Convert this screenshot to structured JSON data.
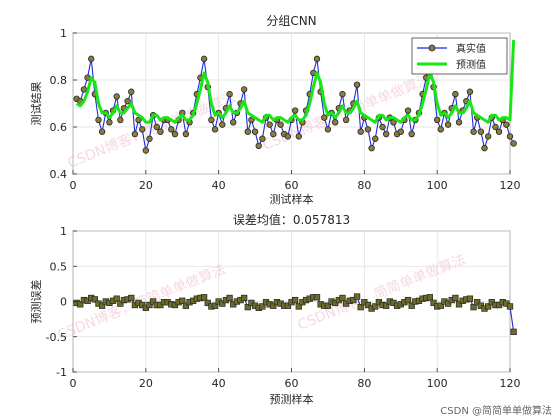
{
  "chart_data": [
    {
      "type": "line",
      "title": "分组CNN",
      "xlabel": "测试样本",
      "ylabel": "测试结果",
      "xlim": [
        0,
        120
      ],
      "ylim": [
        0.4,
        1.0
      ],
      "xticks": [
        "0",
        "20",
        "40",
        "60",
        "80",
        "100",
        "120"
      ],
      "yticks": [
        "0.4",
        "0.6",
        "0.8",
        "1"
      ],
      "grid": true,
      "legend_position": "top-right",
      "series": [
        {
          "name": "真实值",
          "color": "#1f2bd6",
          "marker_color": "#8a7b3e",
          "values": [
            0.72,
            0.71,
            0.76,
            0.81,
            0.89,
            0.74,
            0.63,
            0.58,
            0.66,
            0.62,
            0.67,
            0.73,
            0.63,
            0.68,
            0.71,
            0.75,
            0.57,
            0.63,
            0.59,
            0.5,
            0.55,
            0.65,
            0.6,
            0.58,
            0.63,
            0.63,
            0.59,
            0.57,
            0.63,
            0.66,
            0.57,
            0.62,
            0.66,
            0.74,
            0.81,
            0.89,
            0.77,
            0.63,
            0.59,
            0.66,
            0.61,
            0.68,
            0.74,
            0.62,
            0.66,
            0.7,
            0.76,
            0.58,
            0.63,
            0.58,
            0.52,
            0.55,
            0.64,
            0.61,
            0.57,
            0.63,
            0.61,
            0.57,
            0.56,
            0.63,
            0.67,
            0.56,
            0.62,
            0.67,
            0.74,
            0.83,
            0.89,
            0.75,
            0.64,
            0.59,
            0.66,
            0.62,
            0.68,
            0.74,
            0.63,
            0.67,
            0.7,
            0.78,
            0.58,
            0.64,
            0.59,
            0.51,
            0.55,
            0.64,
            0.6,
            0.57,
            0.64,
            0.62,
            0.57,
            0.58,
            0.63,
            0.67,
            0.57,
            0.63,
            0.66,
            0.74,
            0.81,
            0.89,
            0.77,
            0.63,
            0.59,
            0.66,
            0.61,
            0.68,
            0.74,
            0.62,
            0.67,
            0.71,
            0.75,
            0.58,
            0.64,
            0.58,
            0.51,
            0.56,
            0.64,
            0.6,
            0.58,
            0.63,
            0.61,
            0.56,
            0.53
          ]
        },
        {
          "name": "预测值",
          "color": "#17e617",
          "values": [
            0.7,
            0.69,
            0.71,
            0.75,
            0.81,
            0.79,
            0.7,
            0.66,
            0.66,
            0.64,
            0.66,
            0.69,
            0.66,
            0.66,
            0.68,
            0.7,
            0.66,
            0.65,
            0.64,
            0.62,
            0.62,
            0.65,
            0.65,
            0.63,
            0.64,
            0.64,
            0.63,
            0.62,
            0.64,
            0.65,
            0.63,
            0.63,
            0.65,
            0.7,
            0.76,
            0.83,
            0.79,
            0.7,
            0.65,
            0.66,
            0.64,
            0.66,
            0.69,
            0.66,
            0.66,
            0.68,
            0.71,
            0.66,
            0.65,
            0.64,
            0.63,
            0.62,
            0.65,
            0.65,
            0.63,
            0.64,
            0.64,
            0.63,
            0.62,
            0.64,
            0.65,
            0.63,
            0.63,
            0.65,
            0.7,
            0.77,
            0.83,
            0.79,
            0.7,
            0.65,
            0.66,
            0.64,
            0.66,
            0.69,
            0.66,
            0.66,
            0.68,
            0.71,
            0.66,
            0.65,
            0.64,
            0.63,
            0.62,
            0.65,
            0.65,
            0.63,
            0.64,
            0.64,
            0.63,
            0.62,
            0.64,
            0.65,
            0.63,
            0.63,
            0.65,
            0.7,
            0.76,
            0.83,
            0.79,
            0.7,
            0.65,
            0.66,
            0.64,
            0.66,
            0.69,
            0.66,
            0.66,
            0.68,
            0.71,
            0.66,
            0.65,
            0.64,
            0.63,
            0.62,
            0.65,
            0.65,
            0.63,
            0.64,
            0.64,
            0.63,
            0.97
          ]
        }
      ]
    },
    {
      "type": "line",
      "title": "误差均值：0.057813",
      "xlabel": "预测样本",
      "ylabel": "预测误差",
      "xlim": [
        0,
        120
      ],
      "ylim": [
        -1,
        1
      ],
      "xticks": [
        "0",
        "20",
        "40",
        "60",
        "80",
        "100",
        "120"
      ],
      "yticks": [
        "-1",
        "-0.5",
        "0",
        "0.5",
        "1"
      ],
      "grid": true,
      "series": [
        {
          "color": "#1f2bd6",
          "marker_color": "#6b6b2a",
          "values": [
            -0.02,
            -0.04,
            0.02,
            0.01,
            0.05,
            0.03,
            -0.03,
            -0.06,
            0.0,
            -0.02,
            0.01,
            0.04,
            -0.03,
            0.02,
            0.03,
            0.05,
            -0.05,
            -0.02,
            -0.05,
            -0.09,
            -0.05,
            0.0,
            -0.05,
            -0.05,
            -0.01,
            -0.01,
            -0.04,
            -0.05,
            -0.01,
            0.01,
            -0.06,
            -0.01,
            0.01,
            0.04,
            0.05,
            0.06,
            -0.02,
            -0.07,
            -0.06,
            0.0,
            -0.03,
            0.02,
            0.05,
            -0.04,
            0.0,
            0.02,
            0.05,
            -0.08,
            -0.02,
            -0.06,
            -0.09,
            -0.07,
            -0.01,
            -0.04,
            -0.06,
            -0.01,
            -0.03,
            -0.06,
            -0.06,
            -0.01,
            0.02,
            -0.07,
            -0.01,
            0.02,
            0.04,
            0.06,
            0.06,
            -0.04,
            -0.06,
            -0.06,
            0.0,
            -0.02,
            0.02,
            0.05,
            -0.03,
            0.01,
            0.02,
            0.07,
            -0.08,
            -0.01,
            -0.05,
            -0.1,
            -0.07,
            -0.01,
            -0.05,
            -0.06,
            0.0,
            -0.02,
            -0.06,
            -0.04,
            -0.01,
            0.02,
            -0.06,
            0.0,
            0.01,
            0.04,
            0.05,
            0.06,
            -0.02,
            -0.07,
            -0.06,
            0.0,
            -0.03,
            0.02,
            0.05,
            -0.04,
            0.01,
            0.03,
            0.04,
            -0.08,
            -0.01,
            -0.06,
            -0.1,
            -0.07,
            -0.01,
            -0.05,
            -0.05,
            -0.01,
            -0.03,
            -0.07,
            -0.43
          ]
        }
      ]
    }
  ],
  "watermarks": {
    "top": "CSDN博客，简简单单做算法",
    "bottom": "CSDN博客，简简单单做算法"
  },
  "credit": "CSDN @简简单单做算法"
}
